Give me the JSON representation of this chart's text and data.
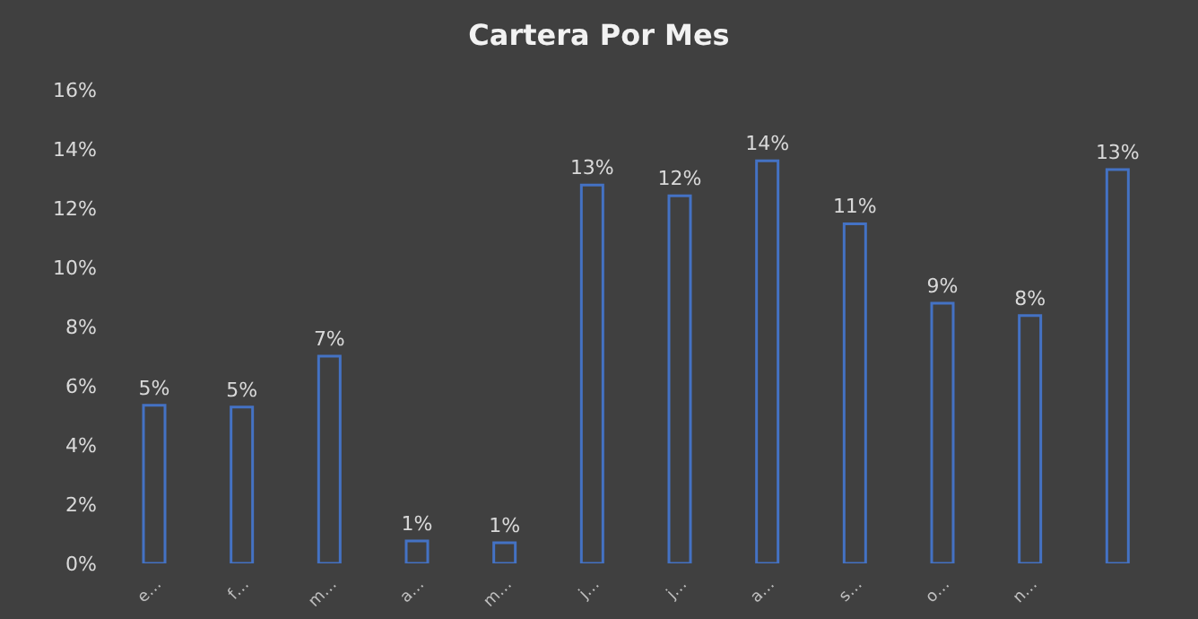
{
  "chart_data": {
    "type": "bar",
    "title": "Cartera Por Mes",
    "categories": [
      "e…",
      "f…",
      "m…",
      "a…",
      "m…",
      "j…",
      "j…",
      "a…",
      "s…",
      "o…",
      "n…",
      null
    ],
    "series": [
      {
        "color": "#4472c4",
        "values": [
          5.34,
          5.28,
          7.0,
          0.76,
          0.7,
          12.78,
          12.42,
          13.6,
          11.47,
          8.79,
          8.37,
          13.3
        ],
        "value_labels": [
          "5%",
          "5%",
          "7%",
          "1%",
          "1%",
          "13%",
          "12%",
          "14%",
          "11%",
          "9%",
          "8%",
          "13%"
        ]
      }
    ],
    "ylim": [
      0,
      16
    ],
    "yticks": [
      {
        "value": 0,
        "label": "0%"
      },
      {
        "value": 2,
        "label": "2%"
      },
      {
        "value": 4,
        "label": "4%"
      },
      {
        "value": 6,
        "label": "6%"
      },
      {
        "value": 8,
        "label": "8%"
      },
      {
        "value": 10,
        "label": "10%"
      },
      {
        "value": 12,
        "label": "12%"
      },
      {
        "value": 14,
        "label": "14%"
      },
      {
        "value": 16,
        "label": "16%"
      }
    ],
    "grid": false,
    "legend": false
  }
}
